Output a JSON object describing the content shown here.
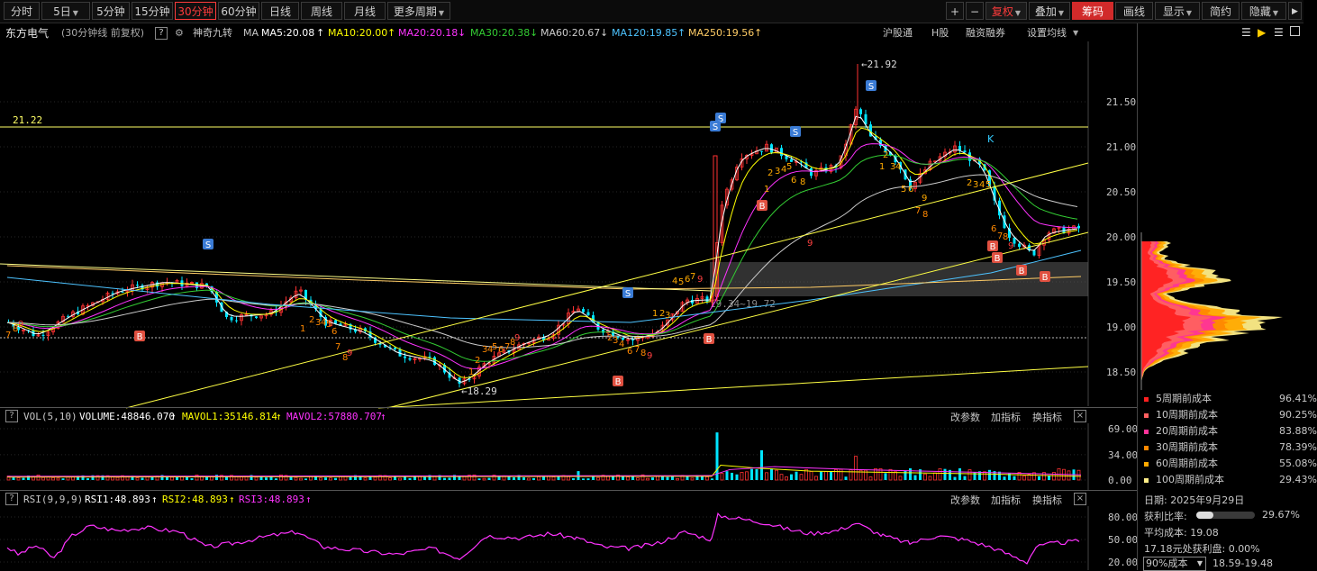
{
  "toolbar": {
    "periods": [
      "分时",
      "5日",
      "5分钟",
      "15分钟",
      "30分钟",
      "60分钟",
      "日线",
      "周线",
      "月线",
      "更多周期"
    ],
    "active_period": "30分钟",
    "plus": "+",
    "minus": "−",
    "fuquan": "复权",
    "diejia": "叠加",
    "chouma": "筹码",
    "huaxian": "画线",
    "xianshi": "显示",
    "jianyue": "简约",
    "yincang": "隐藏"
  },
  "info": {
    "stock_name": "东方电气",
    "period_desc": "(30分钟线 前复权)",
    "help": "?",
    "indicator": "神奇九转",
    "ma_label": "MA",
    "ma5": "MA5:20.08",
    "ma10": "MA10:20.00",
    "ma20": "MA20:20.18",
    "ma30": "MA30:20.38",
    "ma60": "MA60:20.67",
    "ma120": "MA120:19.85",
    "ma250": "MA250:19.56",
    "hugutong": "沪股通",
    "hgu": "H股",
    "rongzi": "融资融券",
    "shezhi": "设置均线"
  },
  "colors": {
    "up": "#ff3232",
    "down": "#00e5ff",
    "ma5": "#ffffff",
    "ma10": "#ffff00",
    "ma20": "#ff33ff",
    "ma30": "#33cc33",
    "ma60": "#cccccc",
    "ma120": "#4dc3ff",
    "ma250": "#ffcc66"
  },
  "main_chart": {
    "price_ticks": [
      "21.50",
      "21.00",
      "20.50",
      "20.00",
      "19.50",
      "19.00",
      "18.50"
    ],
    "hline_label": "21.22",
    "high_label": "21.92",
    "low_label": "18.29",
    "range_label": "19.34~19.72",
    "k_label": "K"
  },
  "volume": {
    "help": "?",
    "title": "VOL(5,10)",
    "volume": "VOLUME:48846.070",
    "mavol1": "MAVOL1:35146.814",
    "mavol2": "MAVOL2:57880.707",
    "gaicanshu": "改参数",
    "jiazhibiao": "加指标",
    "huanzhibiao": "换指标",
    "close": "×",
    "ticks": [
      "69.00",
      "34.00",
      "0.00"
    ]
  },
  "rsi": {
    "help": "?",
    "title": "RSI(9,9,9)",
    "rsi1": "RSI1:48.893",
    "rsi2": "RSI2:48.893",
    "rsi3": "RSI3:48.893",
    "gaicanshu": "改参数",
    "jiazhibiao": "加指标",
    "huanzhibiao": "换指标",
    "close": "×",
    "ticks": [
      "80.00",
      "50.00",
      "20.00"
    ]
  },
  "chip": {
    "legend": [
      {
        "label": "5周期前成本",
        "pct": "96.41%",
        "color": "#ff2020"
      },
      {
        "label": "10周期前成本",
        "pct": "90.25%",
        "color": "#ff6060"
      },
      {
        "label": "20周期前成本",
        "pct": "83.88%",
        "color": "#ff3399"
      },
      {
        "label": "30周期前成本",
        "pct": "78.39%",
        "color": "#ff8800"
      },
      {
        "label": "60周期前成本",
        "pct": "55.08%",
        "color": "#ffaa00"
      },
      {
        "label": "100周期前成本",
        "pct": "29.43%",
        "color": "#ffee88"
      }
    ],
    "date": "日期: 2025年9月29日",
    "profit_label": "获利比率:",
    "profit_pct": "29.67%",
    "profit_value": 0.2967,
    "avg_cost": "平均成本: 19.08",
    "profit_at": "17.18元处获利盘: 0.00%",
    "cost_select": "90%成本",
    "cost_range": "18.59-19.48"
  }
}
